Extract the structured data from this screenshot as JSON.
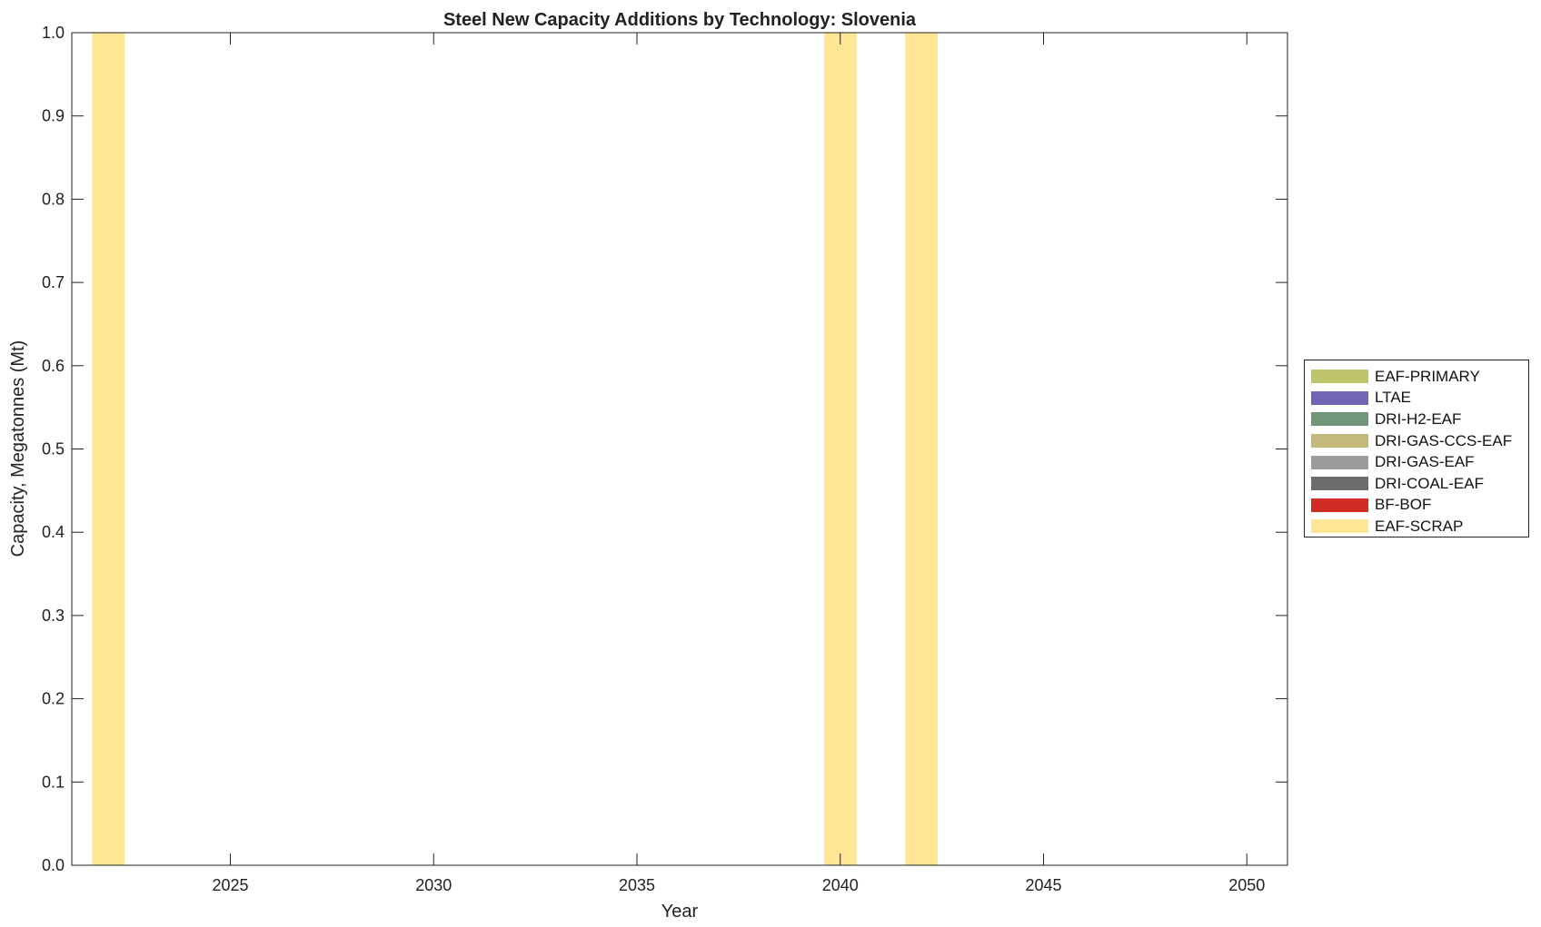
{
  "chart_data": {
    "type": "bar",
    "stacked": true,
    "title": "Steel New Capacity Additions by Technology: Slovenia",
    "xlabel": "Year",
    "ylabel": "Capacity, Megatonnes (Mt)",
    "xlim": [
      2021.1,
      2051
    ],
    "ylim": [
      0,
      1
    ],
    "xticks": [
      2025,
      2030,
      2035,
      2040,
      2045,
      2050
    ],
    "yticks": [
      "0.0",
      "0.1",
      "0.2",
      "0.3",
      "0.4",
      "0.5",
      "0.6",
      "0.7",
      "0.8",
      "0.9",
      "1.0"
    ],
    "grid": false,
    "legend_position": "right",
    "series": [
      {
        "name": "EAF-PRIMARY",
        "color": "#bdc46b",
        "points": []
      },
      {
        "name": "LTAE",
        "color": "#7066b5",
        "points": []
      },
      {
        "name": "DRI-H2-EAF",
        "color": "#72967a",
        "points": []
      },
      {
        "name": "DRI-GAS-CCS-EAF",
        "color": "#c2b97b",
        "points": []
      },
      {
        "name": "DRI-GAS-EAF",
        "color": "#9c9c9c",
        "points": []
      },
      {
        "name": "DRI-COAL-EAF",
        "color": "#6c6c6c",
        "points": []
      },
      {
        "name": "BF-BOF",
        "color": "#d22c26",
        "points": []
      },
      {
        "name": "EAF-SCRAP",
        "color": "#ffe594",
        "points": [
          {
            "x": 2022,
            "y": 1.0
          },
          {
            "x": 2040,
            "y": 1.0
          },
          {
            "x": 2042,
            "y": 1.0
          }
        ]
      }
    ]
  }
}
